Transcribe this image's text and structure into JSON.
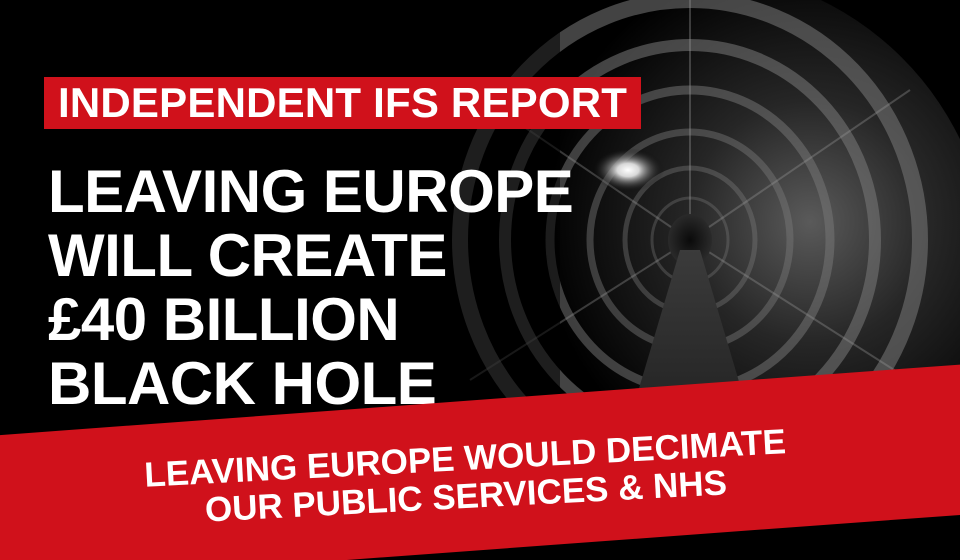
{
  "tag_line": "INDEPENDENT IFS REPORT",
  "headline": {
    "line1": "LEAVING EUROPE",
    "line2": "WILL CREATE",
    "line3": "£40 BILLION",
    "line4": "BLACK HOLE"
  },
  "banner": {
    "line1": "LEAVING EUROPE WOULD DECIMATE",
    "line2": "OUR PUBLIC SERVICES & NHS"
  },
  "colors": {
    "background": "#000000",
    "accent_red": "#d0111b",
    "text": "#ffffff"
  }
}
